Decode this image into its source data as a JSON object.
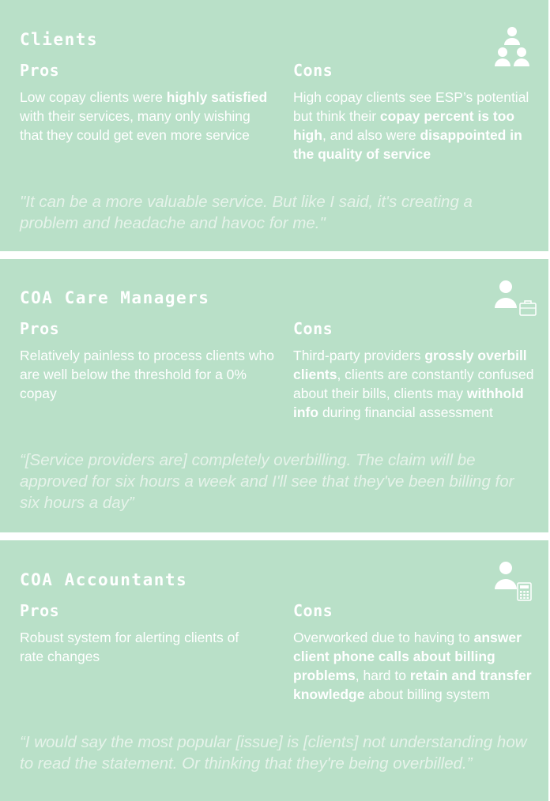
{
  "sections": [
    {
      "title": "Clients",
      "pros_label": "Pros",
      "cons_label": "Cons",
      "pros": [
        "Low copay clients were ",
        "highly satisfied",
        " with their services, many only wishing that they could get even more service"
      ],
      "cons": [
        "High copay clients see ESP’s potential but think their ",
        "copay percent is too high",
        ", and also were ",
        "disappointed in the quality of service"
      ],
      "quote": "\"It can be a more valuable service. But like I said, it's creating a problem and headache and havoc for me.\"",
      "icon": "group-of-people-icon"
    },
    {
      "title": "COA Care Managers",
      "pros_label": "Pros",
      "cons_label": "Cons",
      "pros": [
        "Relatively painless to process clients who are well below the threshold for a 0% copay"
      ],
      "cons": [
        "Third-party providers ",
        "grossly overbill clients",
        ", clients are constantly confused about their bills, clients may ",
        "withhold info",
        " during financial assessment"
      ],
      "quote": "“[Service providers are] completely overbilling. The claim will be approved for six hours a week and I'll see that they've been billing for six hours a day”",
      "icon": "person-with-briefcase-icon"
    },
    {
      "title": "COA Accountants",
      "pros_label": "Pros",
      "cons_label": "Cons",
      "pros": [
        "Robust system for alerting clients of rate changes"
      ],
      "cons": [
        "Overworked due to having to ",
        "answer client phone calls about billing problems",
        ", hard to ",
        "retain and transfer knowledge",
        " about billing system"
      ],
      "quote": "“I would say the most popular [issue] is [clients] not understanding how to read the statement. Or thinking that they're being overbilled.”",
      "icon": "person-with-calculator-icon"
    }
  ],
  "colors": {
    "card_bg": "#b9e0c8",
    "text": "#ffffff",
    "quote": "#e6f3ea"
  }
}
